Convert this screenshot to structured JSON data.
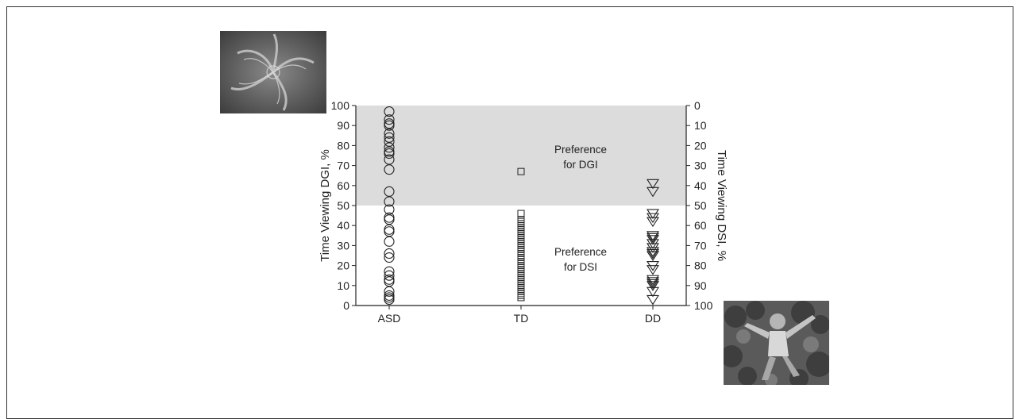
{
  "chart_data": {
    "type": "scatter",
    "title": "",
    "ylabel": "Time Viewing DGI, %",
    "ylabel_right": "Time Viewing DSI, %",
    "xlabel": "",
    "categories": [
      "ASD",
      "TD",
      "DD"
    ],
    "ylim": [
      0,
      100
    ],
    "yticks": [
      "0",
      "10",
      "20",
      "30",
      "40",
      "50",
      "60",
      "70",
      "80",
      "90",
      "100"
    ],
    "yticks_right": [
      "100",
      "90",
      "80",
      "70",
      "60",
      "50",
      "40",
      "30",
      "20",
      "10",
      "0"
    ],
    "shaded_region": {
      "from": 50,
      "to": 100,
      "color": "#dcdcdc"
    },
    "annotations": {
      "dgi_line1": "Preference",
      "dgi_line2": "for DGI",
      "dsi_line1": "Preference",
      "dsi_line2": "for DSI"
    },
    "series": [
      {
        "group": "ASD",
        "marker": "circle",
        "values": [
          97,
          93,
          91,
          90,
          86,
          84,
          82,
          79,
          77,
          76,
          73,
          68,
          57,
          52,
          48,
          44,
          43,
          38,
          37,
          32,
          26,
          24,
          17,
          15,
          13,
          12,
          7,
          5,
          4,
          3
        ]
      },
      {
        "group": "TD",
        "marker": "square",
        "values": [
          67,
          46,
          43,
          42,
          41,
          40,
          39,
          38,
          37,
          36,
          35,
          34,
          33,
          32,
          31,
          30,
          29,
          28,
          27,
          26,
          25,
          24,
          23,
          22,
          21,
          20,
          19,
          18,
          17,
          16,
          15,
          14,
          13,
          12,
          11,
          10,
          9,
          8,
          7,
          6,
          5,
          4
        ]
      },
      {
        "group": "DD",
        "marker": "triangle",
        "values": [
          61,
          57,
          46,
          44,
          42,
          35,
          34,
          33,
          31,
          29,
          27,
          26,
          25,
          20,
          18,
          13,
          12,
          11,
          10,
          7,
          3
        ]
      }
    ]
  },
  "colors": {
    "shade": "#dcdcdc",
    "stroke": "#222222"
  },
  "images": {
    "dgi": "dynamic-geometric-image",
    "dsi": "dynamic-social-image"
  }
}
